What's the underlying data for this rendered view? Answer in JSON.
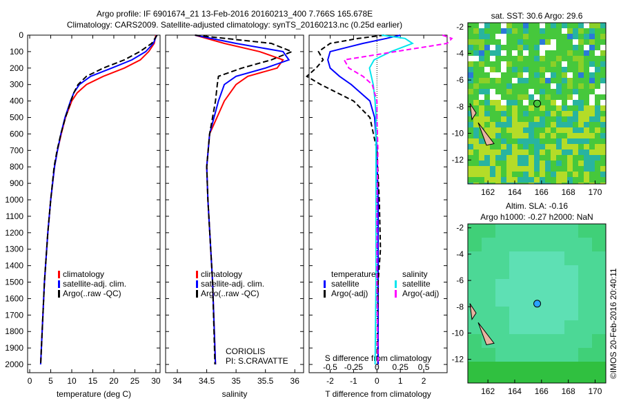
{
  "title_line1": "Argo profile: IF 6901674_21 13-Feb-2016 20160213_400 7.766S 165.678E",
  "title_line2": "Climatology: CARS2009. Satellite-adjusted climatology: synTS_20160213.nc (0.25d earlier)",
  "colors": {
    "climatology": "#ff0000",
    "satellite": "#0000ff",
    "argo": "#000000",
    "sal_satellite": "#00e5ee",
    "sal_argo": "#ff00ff"
  },
  "depth_ticks": [
    "0",
    "100",
    "200",
    "300",
    "400",
    "500",
    "600",
    "700",
    "800",
    "900",
    "1000",
    "1100",
    "1200",
    "1300",
    "1400",
    "1500",
    "1600",
    "1700",
    "1800",
    "1900",
    "2000"
  ],
  "chart_data": [
    {
      "type": "line",
      "xlabel": "temperature (deg C)",
      "xlim": [
        -0.5,
        31
      ],
      "ylim": [
        2050,
        0
      ],
      "xticks": [
        "0",
        "5",
        "10",
        "15",
        "20",
        "25",
        "30"
      ],
      "xtick_values": [
        0,
        5,
        10,
        15,
        20,
        25,
        30
      ],
      "legend": [
        "climatology",
        "satellite-adj. clim.",
        "Argo(..raw -QC)"
      ],
      "depth": [
        0,
        50,
        100,
        150,
        200,
        250,
        300,
        350,
        400,
        500,
        600,
        700,
        800,
        1000,
        1200,
        1500,
        2000
      ],
      "series": [
        {
          "name": "climatology",
          "values": [
            30,
            29.6,
            28.3,
            26.3,
            22.5,
            17.5,
            13.5,
            11.3,
            10,
            8.5,
            7.5,
            6.6,
            5.9,
            5,
            4.3,
            3.5,
            2.6
          ]
        },
        {
          "name": "satellite-adj. clim.",
          "values": [
            30.2,
            29.4,
            27.6,
            24.3,
            19.5,
            14.5,
            11.8,
            10.5,
            9.7,
            8.4,
            7.4,
            6.6,
            5.9,
            5,
            4.3,
            3.5,
            2.6
          ]
        },
        {
          "name": "Argo(..raw -QC)",
          "values": [
            30.3,
            29,
            26.2,
            22.5,
            17.5,
            13.5,
            11.5,
            10.5,
            9.8,
            8.5,
            7.4,
            6.5,
            5.8,
            5,
            4.3,
            3.5,
            2.6
          ]
        }
      ]
    },
    {
      "type": "line",
      "xlabel": "salinity",
      "xlim": [
        33.8,
        36.15
      ],
      "ylim": [
        2050,
        0
      ],
      "xticks": [
        "34",
        "34.5",
        "35",
        "35.5",
        "36"
      ],
      "xtick_values": [
        34,
        34.5,
        35,
        35.5,
        36
      ],
      "legend": [
        "climatology",
        "satellite-adj. clim.",
        "Argo(..raw -QC)"
      ],
      "annotation": [
        "CORIOLIS",
        "PI: S.CRAVATTE"
      ],
      "depth": [
        0,
        50,
        100,
        150,
        200,
        250,
        300,
        400,
        600,
        800,
        1000,
        1500,
        2000
      ],
      "series": [
        {
          "name": "climatology",
          "values": [
            34.3,
            34.8,
            35.4,
            35.8,
            35.7,
            35.2,
            35.0,
            34.8,
            34.55,
            34.5,
            34.52,
            34.6,
            34.65
          ]
        },
        {
          "name": "satellite-adj. clim.",
          "values": [
            34.3,
            35.0,
            35.8,
            35.9,
            35.5,
            35.0,
            34.8,
            34.7,
            34.55,
            34.5,
            34.52,
            34.6,
            34.65
          ]
        },
        {
          "name": "Argo(..raw -QC)",
          "values": [
            34.3,
            35.6,
            35.95,
            35.6,
            35.1,
            34.7,
            34.68,
            34.65,
            34.55,
            34.5,
            34.52,
            34.6,
            34.64
          ]
        }
      ]
    },
    {
      "type": "line",
      "xlabel": "T difference from climatology",
      "x2label": "S difference from climatology",
      "xlim": [
        -2.9,
        3
      ],
      "ylim": [
        2050,
        0
      ],
      "xticks": [
        "-2",
        "-1",
        "0",
        "1",
        "2"
      ],
      "xtick_values": [
        -2,
        -1,
        0,
        1,
        2
      ],
      "x2ticks": [
        "-0.5",
        "-0.25",
        "0",
        "0.25",
        "0.5"
      ],
      "x2tick_values": [
        -0.5,
        -0.25,
        0,
        0.25,
        0.5
      ],
      "legend_temperature": {
        "title": "temperature",
        "items": [
          "satellite",
          "Argo(-adj)"
        ]
      },
      "legend_salinity": {
        "title": "salinity",
        "items": [
          "satellite",
          "Argo(-adj)"
        ]
      },
      "depth": [
        0,
        20,
        50,
        100,
        150,
        200,
        250,
        300,
        400,
        500,
        700,
        1000,
        1300,
        1500,
        2000
      ],
      "series": [
        {
          "name": "T satellite",
          "axis": "T",
          "values": [
            1.0,
            0.4,
            -0.6,
            -2.0,
            -2.1,
            -2.0,
            -1.6,
            -1.1,
            -0.3,
            -0.1,
            0,
            0.05,
            0.05,
            0.05,
            0.05
          ]
        },
        {
          "name": "T Argo(-adj)",
          "axis": "T",
          "values": [
            0.3,
            -0.8,
            -2.0,
            -2.5,
            -2.3,
            -2.6,
            -3.0,
            -2.4,
            -1.0,
            -0.3,
            0,
            0.1,
            0.15,
            0.05,
            0
          ]
        },
        {
          "name": "S satellite",
          "axis": "S",
          "values": [
            0.05,
            0.3,
            0.38,
            0.15,
            -0.03,
            -0.08,
            -0.06,
            -0.04,
            -0.02,
            -0.01,
            -0.01,
            -0.01,
            -0.01,
            -0.01,
            -0.02
          ]
        },
        {
          "name": "S Argo(-adj)",
          "axis": "S",
          "values": [
            0.7,
            0.8,
            0.75,
            0.2,
            -0.35,
            -0.3,
            -0.15,
            -0.05,
            0,
            0,
            0.01,
            0,
            0,
            0,
            0.01
          ]
        }
      ]
    }
  ],
  "maps": {
    "top": {
      "title": "sat. SST: 30.6  Argo: 29.6",
      "lon_ticks": [
        "162",
        "164",
        "166",
        "168",
        "170"
      ],
      "lat_ticks": [
        "-2",
        "-4",
        "-6",
        "-8",
        "-10",
        "-12"
      ]
    },
    "bottom": {
      "title1": "Altim. SLA: -0.16",
      "title2": "Argo h1000: -0.27 h2000: NaN",
      "lon_ticks": [
        "162",
        "164",
        "166",
        "168",
        "170"
      ],
      "lat_ticks": [
        "-2",
        "-4",
        "-6",
        "-8",
        "-10",
        "-12"
      ]
    },
    "credit": "©IMOS 20-Feb-2016 20:40:11"
  }
}
